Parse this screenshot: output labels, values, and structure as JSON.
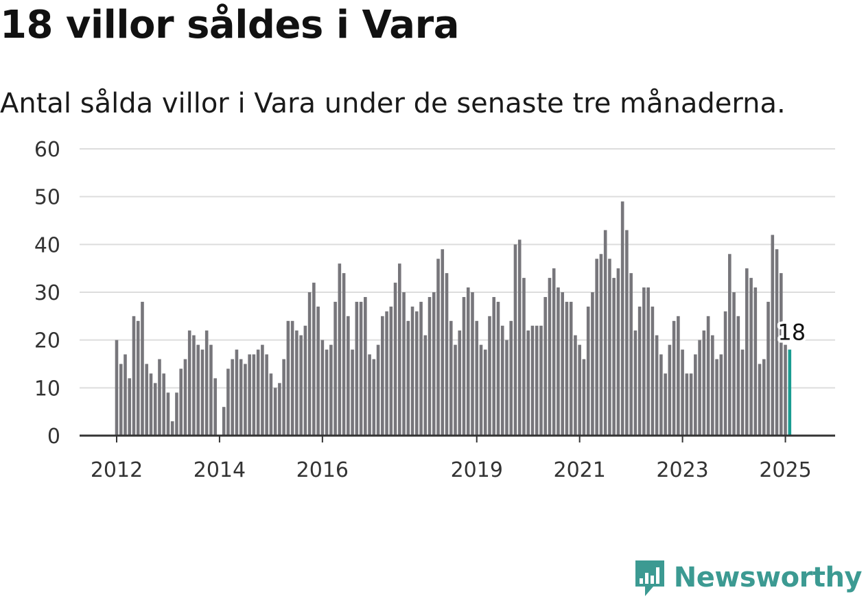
{
  "title": "18 villor såldes i Vara",
  "subtitle": "Antal sålda villor i Vara under de senaste tre månaderna.",
  "brand": "Newsworthy",
  "colors": {
    "bar": "#77767b",
    "highlight": "#1a9c91",
    "grid": "#dddddd",
    "axis": "#333333",
    "brand": "#3c9a92"
  },
  "chart_data": {
    "type": "bar",
    "ylim": [
      0,
      60
    ],
    "yticks": [
      0,
      10,
      20,
      30,
      40,
      50,
      60
    ],
    "grid": true,
    "x_tick_labels": [
      "2012",
      "2014",
      "2016",
      "2019",
      "2021",
      "2023",
      "2025"
    ],
    "x_tick_bar_index": [
      0,
      24,
      48,
      84,
      108,
      132,
      156
    ],
    "start": "2012-01",
    "highlight_label": "18",
    "values": [
      20,
      15,
      17,
      12,
      25,
      24,
      28,
      15,
      13,
      11,
      16,
      13,
      9,
      3,
      9,
      14,
      16,
      22,
      21,
      19,
      18,
      22,
      19,
      12,
      0,
      6,
      14,
      16,
      18,
      16,
      15,
      17,
      17,
      18,
      19,
      17,
      13,
      10,
      11,
      16,
      24,
      24,
      22,
      21,
      23,
      30,
      32,
      27,
      20,
      18,
      19,
      28,
      36,
      34,
      25,
      18,
      28,
      28,
      29,
      17,
      16,
      19,
      25,
      26,
      27,
      32,
      36,
      30,
      24,
      27,
      26,
      28,
      21,
      29,
      30,
      37,
      39,
      34,
      24,
      19,
      22,
      29,
      31,
      30,
      24,
      19,
      18,
      25,
      29,
      28,
      23,
      20,
      24,
      40,
      41,
      33,
      22,
      23,
      23,
      23,
      29,
      33,
      35,
      31,
      30,
      28,
      28,
      21,
      19,
      16,
      27,
      30,
      37,
      38,
      43,
      37,
      33,
      35,
      49,
      43,
      34,
      22,
      27,
      31,
      31,
      27,
      21,
      17,
      13,
      19,
      24,
      25,
      18,
      13,
      13,
      17,
      20,
      22,
      25,
      21,
      16,
      17,
      26,
      38,
      30,
      25,
      18,
      35,
      33,
      31,
      15,
      16,
      28,
      42,
      39,
      34,
      19,
      18
    ]
  }
}
